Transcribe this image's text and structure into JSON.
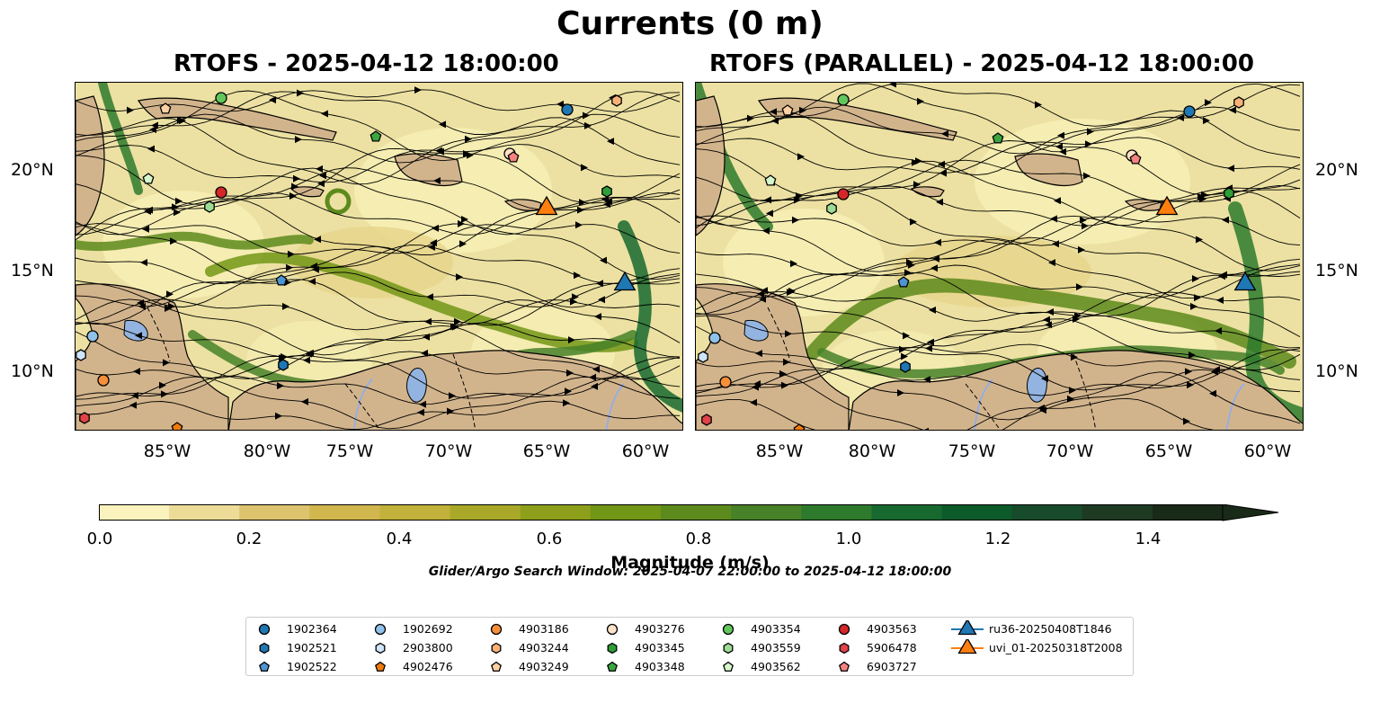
{
  "title": "Currents (0 m)",
  "panels": [
    {
      "title": "RTOFS - 2025-04-12 18:00:00"
    },
    {
      "title": "RTOFS (PARALLEL) - 2025-04-12 18:00:00"
    }
  ],
  "lat_ticks": [
    "20°N",
    "15°N",
    "10°N"
  ],
  "lon_ticks": [
    "85°W",
    "80°W",
    "75°W",
    "70°W",
    "65°W",
    "60°W"
  ],
  "colorbar": {
    "label": "Magnitude (m/s)",
    "ticks": [
      "0.0",
      "0.2",
      "0.4",
      "0.6",
      "0.8",
      "1.0",
      "1.2",
      "1.4"
    ],
    "colors": [
      "#fbf3bd",
      "#ecdc97",
      "#ddc36e",
      "#d2b64e",
      "#c2b13b",
      "#a9a829",
      "#8e9f1c",
      "#729616",
      "#5d8a1c",
      "#478128",
      "#2e7a2d",
      "#17692f",
      "#0d5a2b",
      "#174b2b",
      "#1e3a23",
      "#1a2a18"
    ],
    "extend": "max"
  },
  "search_window": "Glider/Argo Search Window: 2025-04-07 22:00:00 to 2025-04-12 18:00:00",
  "colors": {
    "land": "#d2b48c",
    "lake": "#93b4e0",
    "river": "#98aee0"
  },
  "legend": [
    {
      "label": "1902364",
      "marker": "circle",
      "color": "#1f77b4"
    },
    {
      "label": "1902521",
      "marker": "hexagon",
      "color": "#1f77b4"
    },
    {
      "label": "1902522",
      "marker": "pentagon",
      "color": "#4d94d1"
    },
    {
      "label": "1902692",
      "marker": "circle",
      "color": "#8fc1ea"
    },
    {
      "label": "2903800",
      "marker": "hexagon",
      "color": "#cfe5fb"
    },
    {
      "label": "4902476",
      "marker": "pentagon",
      "color": "#f07a0a"
    },
    {
      "label": "4903186",
      "marker": "circle",
      "color": "#f78f3a"
    },
    {
      "label": "4903244",
      "marker": "hexagon",
      "color": "#f8b278"
    },
    {
      "label": "4903249",
      "marker": "pentagon",
      "color": "#fdd1a2"
    },
    {
      "label": "4903276",
      "marker": "circle",
      "color": "#fde2c7"
    },
    {
      "label": "4903345",
      "marker": "hexagon",
      "color": "#2e9e36"
    },
    {
      "label": "4903348",
      "marker": "pentagon",
      "color": "#3aa63f"
    },
    {
      "label": "4903354",
      "marker": "circle",
      "color": "#62c65c"
    },
    {
      "label": "4903559",
      "marker": "hexagon",
      "color": "#9ddc95"
    },
    {
      "label": "4903562",
      "marker": "pentagon",
      "color": "#d4f7cb"
    },
    {
      "label": "4903563",
      "marker": "circle",
      "color": "#d62728"
    },
    {
      "label": "5906478",
      "marker": "hexagon",
      "color": "#e04348"
    },
    {
      "label": "6903727",
      "marker": "pentagon",
      "color": "#f2837f"
    },
    {
      "label": "ru36-20250408T1846",
      "marker": "triangle",
      "color": "#1f77b4"
    },
    {
      "label": "uvi_01-20250318T2008",
      "marker": "triangle",
      "color": "#ff7f0e"
    }
  ]
}
